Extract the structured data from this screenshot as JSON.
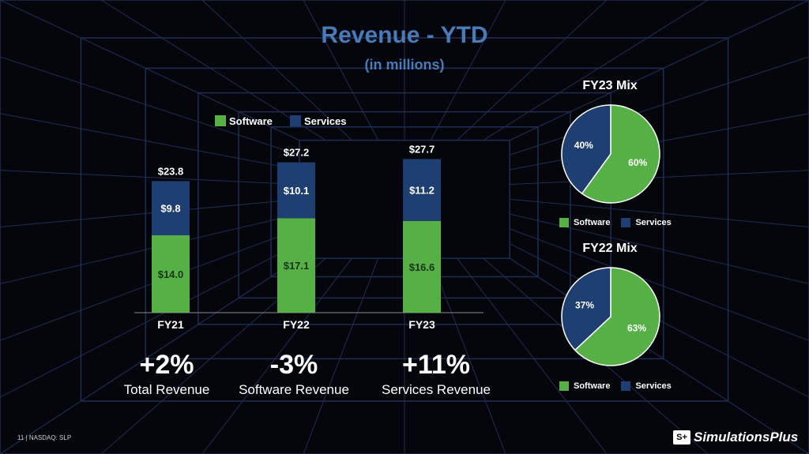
{
  "slide": {
    "title": "Revenue - YTD",
    "subtitle": "(in millions)",
    "footer": "11 | NASDAQ: SLP",
    "logo_mark": "S+",
    "logo_text": "SimulationsPlus"
  },
  "colors": {
    "software": "#56b046",
    "services": "#1f3f73",
    "title": "#4a7ab8",
    "background": "#04060c",
    "grid": "#1e2e52"
  },
  "chart_data": [
    {
      "type": "bar",
      "stacked": true,
      "categories": [
        "FY21",
        "FY22",
        "FY23"
      ],
      "series": [
        {
          "name": "Software",
          "values": [
            14.0,
            17.1,
            16.6
          ],
          "labels": [
            "$14.0",
            "$17.1",
            "$16.6"
          ]
        },
        {
          "name": "Services",
          "values": [
            9.8,
            10.1,
            11.2
          ],
          "labels": [
            "$9.8",
            "$10.1",
            "$11.2"
          ]
        }
      ],
      "totals": [
        23.8,
        27.2,
        27.7
      ],
      "total_labels": [
        "$23.8",
        "$27.2",
        "$27.7"
      ],
      "legend": [
        "Software",
        "Services"
      ],
      "legend_position": "top",
      "grid": false
    },
    {
      "type": "pie",
      "title": "FY23 Mix",
      "labels": [
        "Software",
        "Services"
      ],
      "values": [
        60,
        40
      ],
      "value_labels": [
        "60%",
        "40%"
      ],
      "legend_position": "bottom"
    },
    {
      "type": "pie",
      "title": "FY22 Mix",
      "labels": [
        "Software",
        "Services"
      ],
      "values": [
        63,
        37
      ],
      "value_labels": [
        "63%",
        "37%"
      ],
      "legend_position": "bottom"
    }
  ],
  "kpis": [
    {
      "value": "+2%",
      "label": "Total Revenue"
    },
    {
      "value": "-3%",
      "label": "Software Revenue"
    },
    {
      "value": "+11%",
      "label": "Services Revenue"
    }
  ],
  "pie_legend": {
    "software": "Software",
    "services": "Services"
  }
}
